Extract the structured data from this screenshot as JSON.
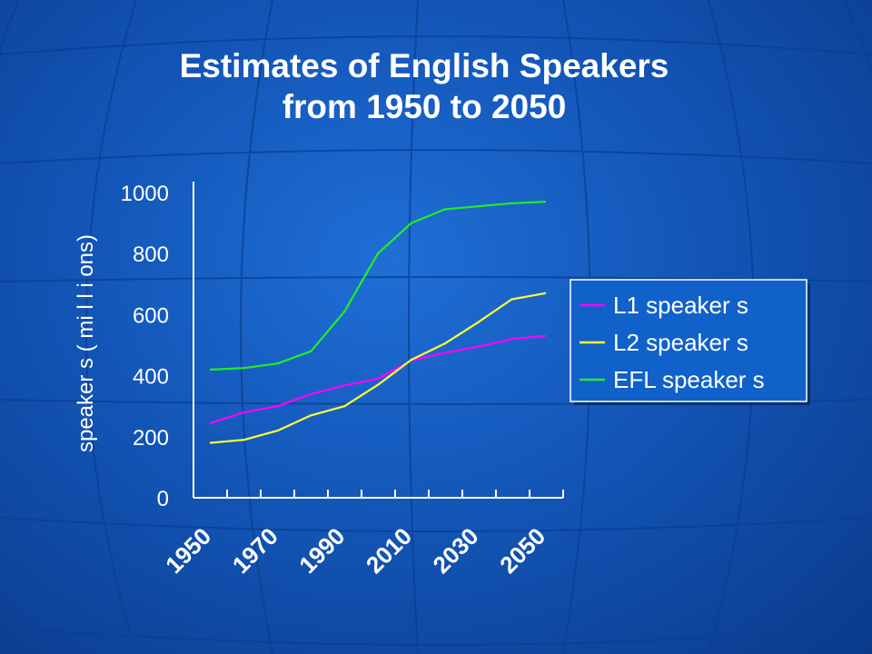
{
  "chart_data": {
    "type": "line",
    "title_lines": [
      "Estimates of English Speakers",
      "from 1950 to 2050"
    ],
    "xlabel": "",
    "ylabel": "speaker s ( mi l l i ons)",
    "ylim": [
      0,
      1000
    ],
    "yticks": [
      0,
      200,
      400,
      600,
      800,
      1000
    ],
    "x": [
      1950,
      1960,
      1970,
      1980,
      1990,
      2000,
      2010,
      2020,
      2030,
      2040,
      2050
    ],
    "xtick_labels": [
      "1950",
      "1970",
      "1990",
      "2010",
      "2030",
      "2050"
    ],
    "legend_position": "right",
    "series": [
      {
        "name": "L1  speaker s",
        "color": "#ff00ff",
        "values": [
          245,
          280,
          300,
          340,
          368,
          390,
          450,
          475,
          495,
          520,
          530
        ]
      },
      {
        "name": "L2  speaker s",
        "color": "#ffff33",
        "values": [
          180,
          190,
          220,
          270,
          300,
          370,
          452,
          505,
          575,
          650,
          670
        ]
      },
      {
        "name": "EFL  speaker s",
        "color": "#22ee22",
        "values": [
          420,
          425,
          440,
          480,
          610,
          800,
          900,
          945,
          955,
          965,
          970
        ]
      }
    ]
  }
}
